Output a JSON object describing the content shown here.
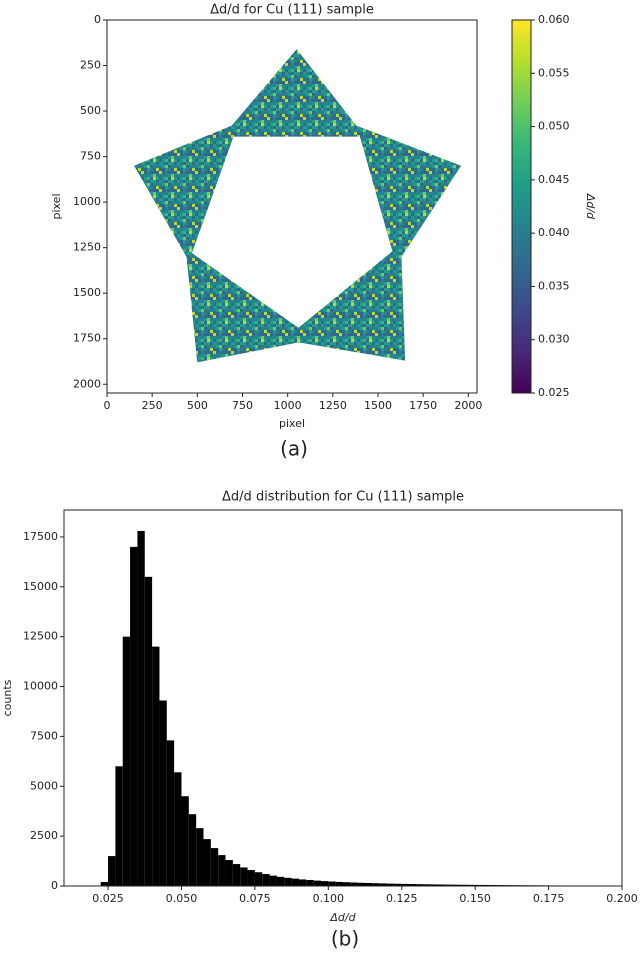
{
  "chart_data": [
    {
      "type": "image",
      "title": "Δd/d for Cu (111) sample",
      "xlabel": "pixel",
      "ylabel": "pixel",
      "xlim": [
        0,
        2048
      ],
      "ylim": [
        2048,
        0
      ],
      "xticks": [
        0,
        250,
        500,
        750,
        1000,
        1250,
        1500,
        1750,
        2000
      ],
      "yticks": [
        0,
        250,
        500,
        750,
        1000,
        1250,
        1500,
        1750,
        2000
      ],
      "colorbar_label": "Δd/d",
      "clim": [
        0.025,
        0.06
      ],
      "cticks": [
        0.025,
        {
          "value": 0.03,
          "label": "0.030"
        },
        0.035,
        {
          "value": 0.04,
          "label": "0.040"
        },
        0.045,
        {
          "value": 0.05,
          "label": "0.050"
        },
        0.055,
        {
          "value": 0.06,
          "label": "0.060"
        }
      ],
      "colormap": [
        "#440154",
        "#482878",
        "#3e4989",
        "#31688e",
        "#26828e",
        "#1f9e89",
        "#35b779",
        "#6ece58",
        "#b5de2b",
        "#fde725"
      ],
      "caption": "(a)"
    },
    {
      "type": "histogram",
      "title": "Δd/d distribution for Cu (111) sample",
      "xlabel": "Δd/d",
      "ylabel": "counts",
      "color": "#000000",
      "xlim": [
        0.01,
        0.2
      ],
      "ylim": [
        0,
        18850
      ],
      "xticks": [
        0.025,
        {
          "value": 0.05,
          "label": "0.050"
        },
        0.075,
        {
          "value": 0.1,
          "label": "0.100"
        },
        0.125,
        {
          "value": 0.15,
          "label": "0.150"
        },
        0.175,
        {
          "value": 0.2,
          "label": "0.200"
        }
      ],
      "yticks": [
        0,
        2500,
        5000,
        7500,
        10000,
        12500,
        15000,
        17500
      ],
      "bins": [
        0.015,
        0.0175,
        0.02,
        0.0225,
        0.025,
        0.0275,
        0.03,
        0.0325,
        0.035,
        0.0375,
        0.04,
        0.0425,
        0.045,
        0.0475,
        0.05,
        0.0525,
        0.055,
        0.0575,
        0.06,
        0.0625,
        0.065,
        0.0675,
        0.07,
        0.0725,
        0.075,
        0.0775,
        0.08,
        0.0825,
        0.085,
        0.0875,
        0.09,
        0.0925,
        0.095,
        0.0975,
        0.1,
        0.1025,
        0.105,
        0.1075,
        0.11,
        0.1125,
        0.115,
        0.1175,
        0.12,
        0.1225,
        0.125,
        0.1275,
        0.13,
        0.1325,
        0.135,
        0.1375,
        0.14,
        0.1425,
        0.145,
        0.1475,
        0.15,
        0.1525,
        0.155,
        0.1575,
        0.16,
        0.1625,
        0.165,
        0.1675,
        0.17,
        0.1725,
        0.175,
        0.1775,
        0.18,
        0.1825,
        0.185,
        0.1875,
        0.19,
        0.1925,
        0.195,
        0.1975,
        0.2
      ],
      "values": [
        0,
        0,
        20,
        200,
        1500,
        6000,
        12500,
        17000,
        17800,
        15500,
        12000,
        9300,
        7300,
        5700,
        4500,
        3600,
        2900,
        2350,
        1900,
        1550,
        1300,
        1100,
        930,
        800,
        690,
        600,
        520,
        460,
        410,
        370,
        330,
        300,
        270,
        245,
        225,
        205,
        190,
        175,
        160,
        150,
        140,
        130,
        120,
        112,
        105,
        98,
        92,
        86,
        80,
        75,
        70,
        66,
        62,
        58,
        55,
        52,
        49,
        46,
        43,
        40,
        38,
        36,
        34,
        32,
        30,
        28,
        26,
        25,
        24,
        23,
        22,
        21,
        20,
        19
      ],
      "caption": "(b)"
    }
  ]
}
